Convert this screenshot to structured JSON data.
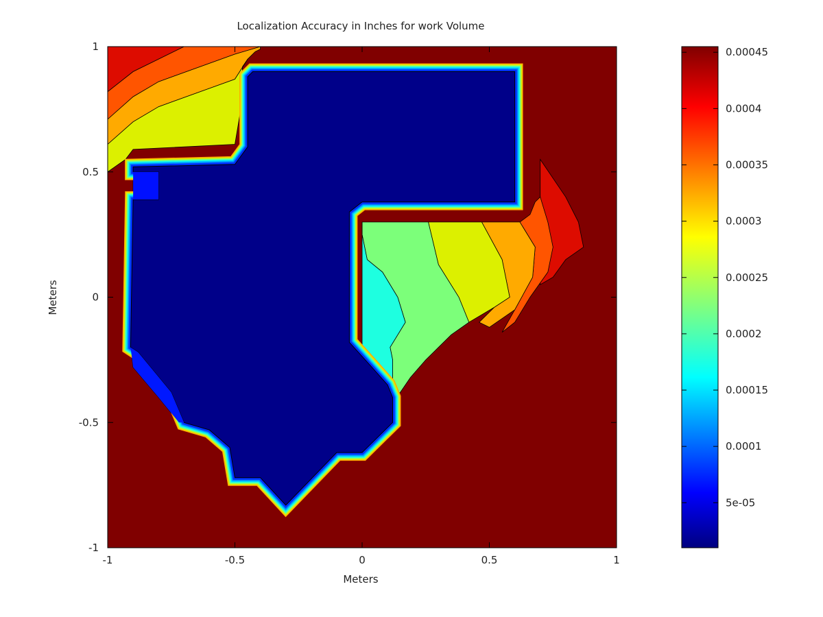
{
  "chart_data": {
    "type": "heatmap",
    "subtype": "filled-contour",
    "title": "Localization Accuracy in Inches for work Volume",
    "xlabel": "Meters",
    "ylabel": "Meters",
    "xlim": [
      -1,
      1
    ],
    "ylim": [
      -1,
      1
    ],
    "xticks": [
      -1,
      -0.5,
      0,
      0.5,
      1
    ],
    "yticks": [
      -1,
      -0.5,
      0,
      0.5,
      1
    ],
    "xtick_labels": [
      "-1",
      "-0.5",
      "0",
      "0.5",
      "1"
    ],
    "ytick_labels": [
      "-1",
      "-0.5",
      "0",
      "0.5",
      "1"
    ],
    "grid": false,
    "colormap": "jet",
    "colorbar": {
      "min": 1e-05,
      "max": 0.000455,
      "ticks": [
        5e-05,
        0.0001,
        0.00015,
        0.0002,
        0.00025,
        0.0003,
        0.00035,
        0.0004,
        0.00045
      ],
      "tick_labels": [
        "5e-05",
        "0.0001",
        "0.00015",
        "0.0002",
        "0.00025",
        "0.0003",
        "0.00035",
        "0.0004",
        "0.00045"
      ]
    },
    "regions": [
      {
        "name": "outside work volume",
        "value": 0.00045,
        "color": "#800000"
      },
      {
        "name": "upper-left gradient band 1",
        "value": 0.00042,
        "color": "#dd0c00",
        "polygon": [
          [
            -1,
            0.82
          ],
          [
            -0.9,
            0.9
          ],
          [
            -0.7,
            1
          ],
          [
            -1,
            1
          ]
        ]
      },
      {
        "name": "upper-left gradient band 2",
        "value": 0.00037,
        "color": "#ff5500",
        "polygon": [
          [
            -1,
            0.71
          ],
          [
            -0.9,
            0.8
          ],
          [
            -0.8,
            0.86
          ],
          [
            -0.5,
            0.97
          ],
          [
            -0.4,
            1
          ],
          [
            -0.7,
            1
          ],
          [
            -0.9,
            0.9
          ],
          [
            -1,
            0.82
          ]
        ]
      },
      {
        "name": "upper-left gradient band 3",
        "value": 0.00033,
        "color": "#ffaa00",
        "polygon": [
          [
            -1,
            0.61
          ],
          [
            -0.9,
            0.7
          ],
          [
            -0.8,
            0.76
          ],
          [
            -0.5,
            0.87
          ],
          [
            -0.45,
            0.95
          ],
          [
            -0.42,
            0.98
          ],
          [
            -0.4,
            0.99
          ],
          [
            -0.4,
            1
          ],
          [
            -0.5,
            0.97
          ],
          [
            -0.8,
            0.86
          ],
          [
            -0.9,
            0.8
          ],
          [
            -1,
            0.71
          ]
        ]
      },
      {
        "name": "upper-left gradient band 4",
        "value": 0.00029,
        "color": "#dcf000",
        "polygon": [
          [
            -1,
            0.5
          ],
          [
            -0.93,
            0.55
          ],
          [
            -0.9,
            0.59
          ],
          [
            -0.5,
            0.61
          ],
          [
            -0.48,
            0.73
          ],
          [
            -0.47,
            0.92
          ],
          [
            -0.45,
            0.95
          ],
          [
            -0.5,
            0.87
          ],
          [
            -0.8,
            0.76
          ],
          [
            -0.9,
            0.7
          ],
          [
            -1,
            0.61
          ]
        ]
      },
      {
        "name": "right gradient band red",
        "value": 0.00042,
        "color": "#dd0c00",
        "polygon": [
          [
            0.7,
            0.55
          ],
          [
            0.8,
            0.4
          ],
          [
            0.85,
            0.3
          ],
          [
            0.87,
            0.2
          ],
          [
            0.8,
            0.15
          ],
          [
            0.75,
            0.08
          ],
          [
            0.7,
            0.05
          ],
          [
            0.7,
            0.2
          ],
          [
            0.7,
            0.35
          ]
        ]
      },
      {
        "name": "right gradient band orange",
        "value": 0.00037,
        "color": "#ff5500",
        "polygon": [
          [
            0.68,
            0.38
          ],
          [
            0.7,
            0.4
          ],
          [
            0.73,
            0.3
          ],
          [
            0.75,
            0.2
          ],
          [
            0.73,
            0.1
          ],
          [
            0.66,
            0
          ],
          [
            0.6,
            -0.1
          ],
          [
            0.55,
            -0.14
          ],
          [
            0.6,
            -0.05
          ],
          [
            0.67,
            0.08
          ],
          [
            0.68,
            0.2
          ],
          [
            0.62,
            0.3
          ],
          [
            0.66,
            0.33
          ]
        ]
      },
      {
        "name": "right gradient band amber",
        "value": 0.00033,
        "color": "#ffaa00",
        "polygon": [
          [
            0.62,
            0.3
          ],
          [
            0.68,
            0.2
          ],
          [
            0.67,
            0.08
          ],
          [
            0.6,
            -0.05
          ],
          [
            0.5,
            -0.12
          ],
          [
            0.46,
            -0.1
          ],
          [
            0.52,
            -0.04
          ],
          [
            0.58,
            0
          ],
          [
            0.55,
            0.15
          ],
          [
            0.47,
            0.3
          ]
        ]
      },
      {
        "name": "right gradient band yellow",
        "value": 0.00029,
        "color": "#dcf000",
        "polygon": [
          [
            0.47,
            0.3
          ],
          [
            0.55,
            0.15
          ],
          [
            0.58,
            0
          ],
          [
            0.52,
            -0.04
          ],
          [
            0.42,
            -0.1
          ],
          [
            0.38,
            0
          ],
          [
            0.3,
            0.13
          ],
          [
            0.26,
            0.3
          ]
        ]
      },
      {
        "name": "green zone",
        "value": 0.00022,
        "color": "#7cff7a",
        "polygon": [
          [
            0,
            0.3
          ],
          [
            0.26,
            0.3
          ],
          [
            0.3,
            0.13
          ],
          [
            0.38,
            0
          ],
          [
            0.42,
            -0.1
          ],
          [
            0.35,
            -0.15
          ],
          [
            0.25,
            -0.25
          ],
          [
            0.19,
            -0.32
          ],
          [
            0.15,
            -0.38
          ],
          [
            0.12,
            -0.4
          ],
          [
            0.12,
            -0.25
          ],
          [
            0.11,
            -0.2
          ],
          [
            0.17,
            -0.1
          ],
          [
            0.14,
            0
          ],
          [
            0.08,
            0.1
          ],
          [
            0.02,
            0.15
          ],
          [
            0,
            0.25
          ]
        ]
      },
      {
        "name": "cyan zone",
        "value": 0.00018,
        "color": "#1effe0",
        "polygon": [
          [
            0,
            0.3
          ],
          [
            0,
            0.25
          ],
          [
            0.02,
            0.15
          ],
          [
            0.08,
            0.1
          ],
          [
            0.14,
            0
          ],
          [
            0.17,
            -0.1
          ],
          [
            0.11,
            -0.2
          ],
          [
            0.12,
            -0.25
          ],
          [
            0.12,
            -0.4
          ],
          [
            0.1,
            -0.35
          ],
          [
            0.05,
            -0.3
          ],
          [
            0,
            -0.2
          ],
          [
            0,
            0.3
          ]
        ]
      },
      {
        "name": "small blue patch",
        "value": 3e-05,
        "color": "#0010ff",
        "polygon": [
          [
            -0.9,
            0.5
          ],
          [
            -0.8,
            0.5
          ],
          [
            -0.8,
            0.39
          ],
          [
            -0.9,
            0.39
          ]
        ]
      },
      {
        "name": "blue sliver lower left",
        "value": 3e-05,
        "color": "#0018ff",
        "polygon": [
          [
            -0.91,
            -0.2
          ],
          [
            -0.88,
            -0.22
          ],
          [
            -0.75,
            -0.38
          ],
          [
            -0.7,
            -0.5
          ],
          [
            -0.72,
            -0.5
          ],
          [
            -0.8,
            -0.4
          ],
          [
            -0.9,
            -0.28
          ]
        ]
      },
      {
        "name": "minimum error core",
        "value": 1e-05,
        "color": "#000089",
        "polygon": [
          [
            -0.43,
            0.9
          ],
          [
            0.6,
            0.9
          ],
          [
            0.6,
            0.38
          ],
          [
            0,
            0.38
          ],
          [
            -0.05,
            0.34
          ],
          [
            -0.05,
            -0.18
          ],
          [
            0.03,
            -0.27
          ],
          [
            0.1,
            -0.35
          ],
          [
            0.12,
            -0.4
          ],
          [
            0.12,
            -0.5
          ],
          [
            0.07,
            -0.55
          ],
          [
            0,
            -0.62
          ],
          [
            -0.1,
            -0.62
          ],
          [
            -0.3,
            -0.83
          ],
          [
            -0.4,
            -0.72
          ],
          [
            -0.5,
            -0.72
          ],
          [
            -0.52,
            -0.6
          ],
          [
            -0.6,
            -0.53
          ],
          [
            -0.7,
            -0.5
          ],
          [
            -0.75,
            -0.38
          ],
          [
            -0.88,
            -0.22
          ],
          [
            -0.91,
            -0.2
          ],
          [
            -0.9,
            0.39
          ],
          [
            -0.8,
            0.39
          ],
          [
            -0.8,
            0.5
          ],
          [
            -0.9,
            0.5
          ],
          [
            -0.9,
            0.52
          ],
          [
            -0.5,
            0.53
          ],
          [
            -0.45,
            0.6
          ],
          [
            -0.45,
            0.88
          ]
        ]
      }
    ]
  }
}
